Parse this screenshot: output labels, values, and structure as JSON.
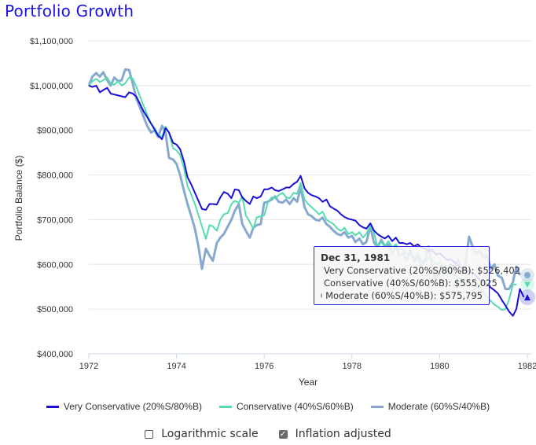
{
  "title": "Portfolio Growth",
  "colors": {
    "title": "#1a12e8",
    "very_conservative": "#1a0fd6",
    "conservative": "#55dcae",
    "moderate": "#87a9d0",
    "grid": "#e6e6e6",
    "axis": "#ccd6eb",
    "tooltip_border": "#2f26e0"
  },
  "tooltip": {
    "date": "Dec 31, 1981",
    "rows": [
      {
        "label": "Very Conservative (20%S/80%B): $526,402",
        "color": "#1a0fd6"
      },
      {
        "label": "Conservative (40%S/60%B): $555,025",
        "color": "#55dcae"
      },
      {
        "label": "Moderate (60%S/40%B): $575,795",
        "color": "#87a9d0"
      }
    ]
  },
  "options": {
    "log_scale_label": "Logarithmic scale",
    "log_scale_checked": false,
    "inflation_label": "Inflation adjusted",
    "inflation_checked": true
  },
  "chart_data": {
    "type": "line",
    "title": "Portfolio Growth",
    "xlabel": "Year",
    "ylabel": "Portfolio Balance ($)",
    "xlim": [
      1972,
      1982.1
    ],
    "ylim": [
      400000,
      1100000
    ],
    "x_ticks": [
      "1972",
      "1974",
      "1976",
      "1978",
      "1980",
      "1982"
    ],
    "x_tick_values": [
      1972,
      1974,
      1976,
      1978,
      1980,
      1982
    ],
    "y_ticks": [
      "$400,000",
      "$500,000",
      "$600,000",
      "$700,000",
      "$800,000",
      "$900,000",
      "$1,000,000",
      "$1,100,000"
    ],
    "y_tick_values": [
      400000,
      500000,
      600000,
      700000,
      800000,
      900000,
      1000000,
      1100000
    ],
    "grid": true,
    "legend_position": "bottom",
    "x": [
      1972.0,
      1972.08,
      1972.17,
      1972.25,
      1972.33,
      1972.42,
      1972.5,
      1972.58,
      1972.67,
      1972.75,
      1972.83,
      1972.92,
      1973.0,
      1973.08,
      1973.17,
      1973.25,
      1973.33,
      1973.42,
      1973.5,
      1973.58,
      1973.67,
      1973.75,
      1973.83,
      1973.92,
      1974.0,
      1974.08,
      1974.17,
      1974.25,
      1974.33,
      1974.42,
      1974.5,
      1974.58,
      1974.67,
      1974.75,
      1974.83,
      1974.92,
      1975.0,
      1975.08,
      1975.17,
      1975.25,
      1975.33,
      1975.42,
      1975.5,
      1975.58,
      1975.67,
      1975.75,
      1975.83,
      1975.92,
      1976.0,
      1976.08,
      1976.17,
      1976.25,
      1976.33,
      1976.42,
      1976.5,
      1976.58,
      1976.67,
      1976.75,
      1976.83,
      1976.92,
      1977.0,
      1977.08,
      1977.17,
      1977.25,
      1977.33,
      1977.42,
      1977.5,
      1977.58,
      1977.67,
      1977.75,
      1977.83,
      1977.92,
      1978.0,
      1978.08,
      1978.17,
      1978.25,
      1978.33,
      1978.42,
      1978.5,
      1978.58,
      1978.67,
      1978.75,
      1978.83,
      1978.92,
      1979.0,
      1979.08,
      1979.17,
      1979.25,
      1979.33,
      1979.42,
      1979.5,
      1979.58,
      1979.67,
      1979.75,
      1979.83,
      1979.92,
      1980.0,
      1980.08,
      1980.17,
      1980.25,
      1980.33,
      1980.42,
      1980.5,
      1980.58,
      1980.67,
      1980.75,
      1980.83,
      1980.92,
      1981.0,
      1981.08,
      1981.17,
      1981.25,
      1981.33,
      1981.42,
      1981.5,
      1981.58,
      1981.67,
      1981.75,
      1981.83,
      1981.92,
      1982.0
    ],
    "series": [
      {
        "name": "Very Conservative (20%S/80%B)",
        "color": "#1a0fd6",
        "values": [
          1000000,
          997000,
          1000000,
          985000,
          990000,
          995000,
          982000,
          980000,
          978000,
          976000,
          974000,
          985000,
          982000,
          976000,
          958000,
          942000,
          930000,
          915000,
          902000,
          888000,
          880000,
          905000,
          895000,
          872000,
          868000,
          858000,
          830000,
          795000,
          780000,
          760000,
          742000,
          724000,
          722000,
          735000,
          735000,
          734000,
          750000,
          762000,
          758000,
          748000,
          768000,
          766000,
          750000,
          742000,
          735000,
          752000,
          748000,
          752000,
          768000,
          768000,
          772000,
          766000,
          764000,
          768000,
          772000,
          772000,
          780000,
          785000,
          798000,
          770000,
          760000,
          755000,
          752000,
          748000,
          740000,
          745000,
          730000,
          725000,
          720000,
          712000,
          706000,
          702000,
          700000,
          698000,
          688000,
          683000,
          680000,
          692000,
          676000,
          668000,
          662000,
          658000,
          664000,
          652000,
          660000,
          648000,
          648000,
          645000,
          648000,
          640000,
          645000,
          638000,
          635000,
          630000,
          632000,
          622000,
          625000,
          618000,
          610000,
          612000,
          605000,
          598000,
          592000,
          588000,
          585000,
          580000,
          575000,
          565000,
          560000,
          555000,
          548000,
          542000,
          535000,
          520000,
          508000,
          495000,
          485000,
          500000,
          545000,
          526402
        ]
      },
      {
        "name": "Conservative (40%S/60%B)",
        "color": "#55dcae",
        "values": [
          1000000,
          1010000,
          1015000,
          1008000,
          1012000,
          1018000,
          1005000,
          1002000,
          1010000,
          1000000,
          1005000,
          1018000,
          1016000,
          998000,
          975000,
          955000,
          935000,
          915000,
          905000,
          890000,
          885000,
          908000,
          895000,
          860000,
          855000,
          845000,
          815000,
          775000,
          758000,
          735000,
          710000,
          685000,
          657000,
          688000,
          685000,
          675000,
          700000,
          712000,
          715000,
          735000,
          742000,
          738000,
          752000,
          710000,
          695000,
          680000,
          705000,
          708000,
          710000,
          738000,
          750000,
          748000,
          755000,
          760000,
          750000,
          748000,
          760000,
          758000,
          782000,
          745000,
          735000,
          728000,
          720000,
          712000,
          718000,
          700000,
          695000,
          690000,
          680000,
          675000,
          682000,
          668000,
          672000,
          665000,
          672000,
          660000,
          668000,
          688000,
          672000,
          640000,
          650000,
          640000,
          652000,
          638000,
          645000,
          632000,
          635000,
          622000,
          630000,
          615000,
          625000,
          610000,
          605000,
          615000,
          610000,
          600000,
          605000,
          585000,
          592000,
          580000,
          578000,
          570000,
          565000,
          572000,
          560000,
          555000,
          548000,
          545000,
          535000,
          525000,
          518000,
          510000,
          505000,
          498000,
          500000,
          520000,
          555000,
          555025
        ]
      },
      {
        "name": "Moderate (60%S/40%B)",
        "color": "#87a9d0",
        "values": [
          1000000,
          1020000,
          1028000,
          1020000,
          1030000,
          1012000,
          1000000,
          1018000,
          1010000,
          1012000,
          1036000,
          1035000,
          1005000,
          972000,
          950000,
          930000,
          910000,
          895000,
          900000,
          885000,
          910000,
          895000,
          838000,
          835000,
          825000,
          800000,
          765000,
          735000,
          710000,
          680000,
          640000,
          590000,
          635000,
          620000,
          608000,
          648000,
          660000,
          668000,
          685000,
          700000,
          720000,
          735000,
          690000,
          675000,
          660000,
          682000,
          688000,
          690000,
          738000,
          740000,
          745000,
          752000,
          740000,
          738000,
          745000,
          735000,
          748000,
          740000,
          772000,
          728000,
          712000,
          708000,
          700000,
          698000,
          705000,
          690000,
          684000,
          675000,
          668000,
          665000,
          672000,
          660000,
          664000,
          650000,
          658000,
          645000,
          650000,
          685000,
          650000,
          638000,
          655000,
          640000,
          645000,
          625000,
          640000,
          620000,
          625000,
          608000,
          632000,
          605000,
          618000,
          598000,
          610000,
          640000,
          595000,
          560000,
          595000,
          578000,
          585000,
          600000,
          595000,
          610000,
          590000,
          595000,
          662000,
          640000,
          625000,
          630000,
          615000,
          620000,
          590000,
          600000,
          575000,
          570000,
          545000,
          545000,
          560000,
          595000,
          575795
        ]
      }
    ]
  }
}
